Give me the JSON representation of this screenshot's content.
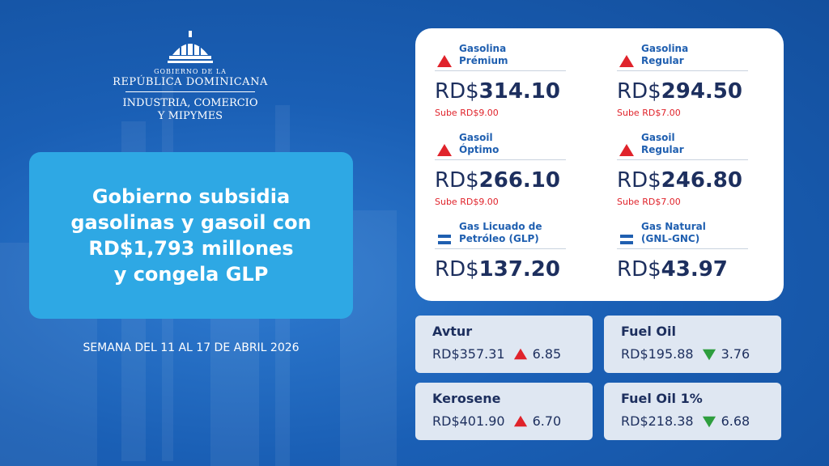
{
  "header": {
    "line1": "GOBIERNO DE LA",
    "line2": "REPÚBLICA DOMINICANA",
    "line3": "INDUSTRIA, COMERCIO",
    "line4": "Y MIPYMES"
  },
  "headline": {
    "lines": [
      "Gobierno subsidia",
      "gasolinas y gasoil con",
      "RD$1,793 millones",
      "y congela GLP"
    ]
  },
  "week": "SEMANA DEL 11 AL 17 DE ABRIL 2026",
  "main_prices": [
    {
      "name": [
        "Gasolina",
        "Prémium"
      ],
      "trend": "up",
      "currency": "RD$",
      "price": "314.10",
      "change": "Sube RD$9.00"
    },
    {
      "name": [
        "Gasolina",
        "Regular"
      ],
      "trend": "up",
      "currency": "RD$",
      "price": "294.50",
      "change": "Sube RD$7.00"
    },
    {
      "name": [
        "Gasoil",
        "Óptimo"
      ],
      "trend": "up",
      "currency": "RD$",
      "price": "266.10",
      "change": "Sube RD$9.00"
    },
    {
      "name": [
        "Gasoil",
        "Regular"
      ],
      "trend": "up",
      "currency": "RD$",
      "price": "246.80",
      "change": "Sube RD$7.00"
    },
    {
      "name": [
        "Gas Licuado de",
        "Petróleo (GLP)"
      ],
      "trend": "equal",
      "currency": "RD$",
      "price": "137.20"
    },
    {
      "name": [
        "Gas Natural",
        "(GNL-GNC)"
      ],
      "trend": "equal",
      "currency": "RD$",
      "price": "43.97"
    }
  ],
  "other_prices": [
    {
      "name": "Avtur",
      "price": "RD$357.31",
      "trend": "up",
      "change": "6.85"
    },
    {
      "name": "Fuel Oil",
      "price": "RD$195.88",
      "trend": "down",
      "change": "3.76"
    },
    {
      "name": "Kerosene",
      "price": "RD$401.90",
      "trend": "up",
      "change": "6.70"
    },
    {
      "name": "Fuel Oil 1%",
      "price": "RD$218.38",
      "trend": "down",
      "change": "6.68"
    }
  ]
}
